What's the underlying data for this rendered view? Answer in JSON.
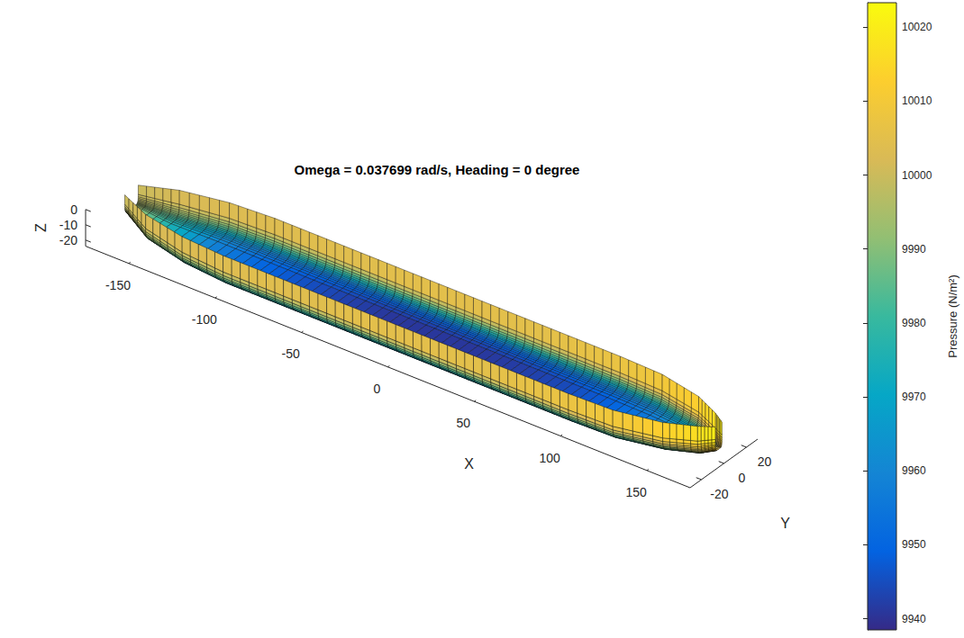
{
  "chart_data": {
    "type": "surface",
    "title": "Omega = 0.037699 rad/s, Heading = 0 degree",
    "x_label": "X",
    "y_label": "Y",
    "z_label": "Z",
    "xlim": [
      -175,
      175
    ],
    "xticks": [
      -150,
      -100,
      -50,
      0,
      50,
      100,
      150
    ],
    "ylim": [
      -30,
      30
    ],
    "yticks": [
      -20,
      0,
      20
    ],
    "zlim": [
      -24,
      0
    ],
    "zticks": [
      -20,
      -10,
      0
    ],
    "hull": {
      "x": [
        -168,
        -150,
        -125,
        -100,
        -75,
        -50,
        -25,
        0,
        25,
        50,
        75,
        100,
        125,
        150,
        165,
        172
      ],
      "half_breadth": [
        6,
        15,
        21,
        23,
        23,
        23,
        23,
        23,
        23,
        23,
        23,
        23,
        22,
        16,
        8,
        3
      ],
      "draft": [
        12,
        18,
        20,
        21,
        21,
        21,
        21,
        21,
        21,
        21,
        21,
        21,
        21,
        20,
        19,
        16
      ]
    },
    "girth_angle": [
      0,
      30,
      60,
      90,
      120,
      150,
      180
    ],
    "pressure": [
      [
        10000,
        9998,
        9995,
        9994,
        9995,
        9998,
        10000
      ],
      [
        10003,
        9992,
        9980,
        9975,
        9980,
        9992,
        10003
      ],
      [
        10005,
        9985,
        9965,
        9958,
        9965,
        9985,
        10005
      ],
      [
        10006,
        9982,
        9958,
        9950,
        9958,
        9982,
        10006
      ],
      [
        10007,
        9980,
        9955,
        9945,
        9955,
        9980,
        10007
      ],
      [
        10007,
        9978,
        9952,
        9942,
        9952,
        9978,
        10007
      ],
      [
        10008,
        9978,
        9950,
        9940,
        9950,
        9978,
        10008
      ],
      [
        10008,
        9978,
        9950,
        9940,
        9950,
        9978,
        10008
      ],
      [
        10008,
        9978,
        9950,
        9940,
        9950,
        9978,
        10008
      ],
      [
        10008,
        9979,
        9951,
        9941,
        9951,
        9979,
        10008
      ],
      [
        10009,
        9980,
        9953,
        9943,
        9953,
        9980,
        10009
      ],
      [
        10010,
        9982,
        9956,
        9947,
        9956,
        9982,
        10010
      ],
      [
        10012,
        9986,
        9962,
        9955,
        9962,
        9986,
        10012
      ],
      [
        10015,
        9994,
        9975,
        9968,
        9975,
        9994,
        10015
      ],
      [
        10018,
        10005,
        9992,
        9988,
        9992,
        10005,
        10018
      ],
      [
        10021,
        10015,
        10008,
        10005,
        10008,
        10015,
        10021
      ]
    ],
    "colorbar": {
      "label": "Pressure (N/m²)",
      "lim": [
        9938.5,
        10023.3
      ],
      "ticks": [
        9940,
        9950,
        9960,
        9970,
        9980,
        9990,
        10000,
        10010,
        10020
      ]
    }
  }
}
